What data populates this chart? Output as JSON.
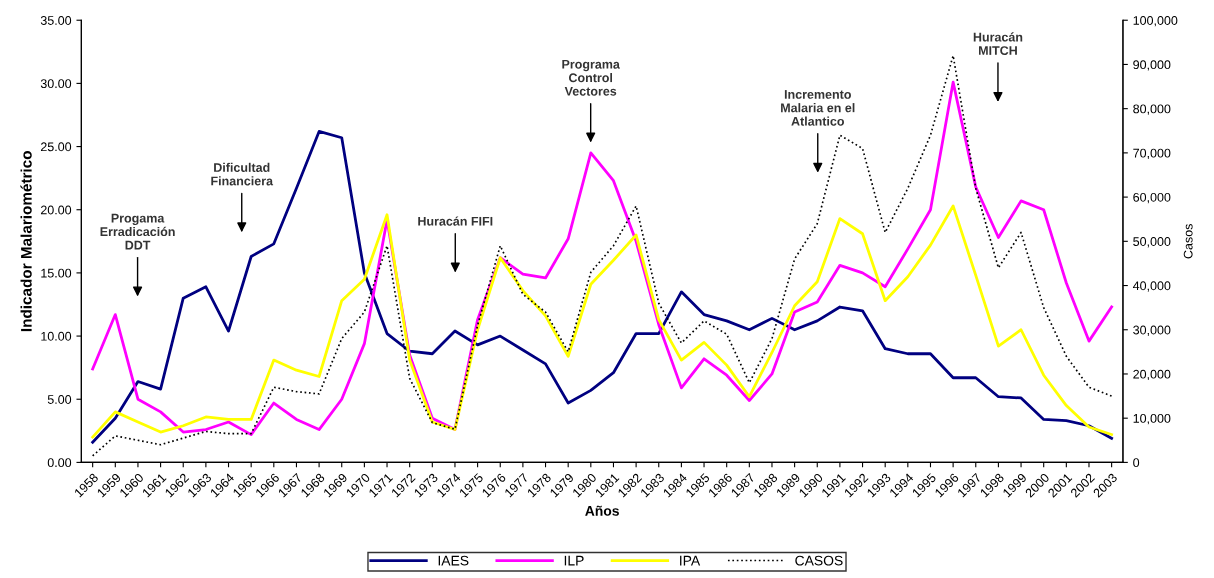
{
  "chart_data": {
    "type": "line",
    "xlabel": "Años",
    "ylabel": "Indicador Malariométrico",
    "y2label": "Casos",
    "categories": [
      "1958",
      "1959",
      "1960",
      "1961",
      "1962",
      "1963",
      "1964",
      "1965",
      "1966",
      "1967",
      "1968",
      "1969",
      "1970",
      "1971",
      "1972",
      "1973",
      "1974",
      "1975",
      "1976",
      "1977",
      "1978",
      "1979",
      "1980",
      "1981",
      "1982",
      "1983",
      "1984",
      "1985",
      "1986",
      "1987",
      "1988",
      "1989",
      "1990",
      "1991",
      "1992",
      "1993",
      "1994",
      "1995",
      "1996",
      "1997",
      "1998",
      "1999",
      "2000",
      "2001",
      "2002",
      "2003"
    ],
    "series": [
      {
        "name": "IAES",
        "color": "#000080",
        "line_style": "solid",
        "values": [
          1.6,
          3.5,
          6.4,
          5.8,
          13.0,
          13.9,
          10.4,
          16.3,
          17.3,
          21.7,
          26.2,
          25.7,
          15.0,
          10.2,
          8.8,
          8.6,
          10.4,
          9.3,
          10.0,
          8.9,
          7.8,
          4.7,
          5.7,
          7.1,
          10.2,
          10.2,
          13.5,
          11.7,
          11.2,
          10.5,
          11.4,
          10.5,
          11.2,
          12.3,
          12.0,
          9.0,
          8.6,
          8.6,
          6.7,
          6.7,
          5.2,
          5.1,
          3.4,
          3.3,
          2.9,
          1.9
        ]
      },
      {
        "name": "ILP",
        "color": "#ff00ff",
        "line_style": "solid",
        "values": [
          7.4,
          11.7,
          5.0,
          4.0,
          2.4,
          2.6,
          3.2,
          2.2,
          4.7,
          3.4,
          2.6,
          5.0,
          9.4,
          19.2,
          8.5,
          3.5,
          2.6,
          11.3,
          16.2,
          14.9,
          14.6,
          17.7,
          24.5,
          22.3,
          17.5,
          10.9,
          5.9,
          8.2,
          6.9,
          4.9,
          7.0,
          11.9,
          12.7,
          15.6,
          15.0,
          13.9,
          16.9,
          20.0,
          30.1,
          21.8,
          17.8,
          20.7,
          20.0,
          14.2,
          9.6,
          12.3
        ]
      },
      {
        "name": "IPA",
        "color": "#ffff00",
        "line_style": "solid",
        "values": [
          2.0,
          4.0,
          3.2,
          2.4,
          2.9,
          3.6,
          3.4,
          3.4,
          8.1,
          7.3,
          6.8,
          12.8,
          14.5,
          19.6,
          8.1,
          3.2,
          2.6,
          10.5,
          16.2,
          13.6,
          11.6,
          8.4,
          14.1,
          16.0,
          18.0,
          11.3,
          8.1,
          9.5,
          7.7,
          5.2,
          8.7,
          12.4,
          14.3,
          19.3,
          18.1,
          12.8,
          14.7,
          17.2,
          20.3,
          14.8,
          9.2,
          10.5,
          6.9,
          4.5,
          2.8,
          2.2
        ]
      },
      {
        "name": "CASOS",
        "color": "#000000",
        "line_style": "dotted",
        "axis": "y2",
        "values": [
          1500,
          6000,
          5000,
          4000,
          5500,
          7000,
          6500,
          6500,
          17000,
          16000,
          15500,
          28000,
          34000,
          49000,
          19000,
          9000,
          7500,
          31000,
          49000,
          38000,
          34000,
          25000,
          43000,
          49000,
          58000,
          36000,
          27000,
          32000,
          29000,
          18000,
          28000,
          46000,
          54000,
          74000,
          71000,
          52000,
          62000,
          74000,
          92000,
          62000,
          44000,
          52000,
          35000,
          24000,
          17000,
          15000
        ]
      }
    ],
    "ylim": [
      0,
      35
    ],
    "yticks": [
      {
        "value": 0,
        "label": "0.00"
      },
      {
        "value": 5,
        "label": "5.00"
      },
      {
        "value": 10,
        "label": "10.00"
      },
      {
        "value": 15,
        "label": "15.00"
      },
      {
        "value": 20,
        "label": "20.00"
      },
      {
        "value": 25,
        "label": "25.00"
      },
      {
        "value": 30,
        "label": "30.00"
      },
      {
        "value": 35,
        "label": "35.00"
      }
    ],
    "y2lim": [
      0,
      100000
    ],
    "y2ticks": [
      0,
      {
        "value": 10000,
        "label": "10,000"
      },
      {
        "value": 20000,
        "label": "20,000"
      },
      {
        "value": 30000,
        "label": "30,000"
      },
      {
        "value": 40000,
        "label": "40,000"
      },
      {
        "value": 50000,
        "label": "50,000"
      },
      {
        "value": 60000,
        "label": "60,000"
      },
      {
        "value": 70000,
        "label": "70,000"
      },
      {
        "value": 80000,
        "label": "80,000"
      },
      {
        "value": 90000,
        "label": "90,000"
      },
      {
        "value": 100000,
        "label": "100,000"
      }
    ],
    "annotations": [
      "Progama\nErradicación\nDDT",
      "Dificultad\nFinanciera",
      "Huracán FIFI",
      "Programa\nControl\nVectores",
      "Incremento\nMalaria en el\nAtlantico",
      "Huracán\nMITCH"
    ],
    "grid": false,
    "legend": "bottom",
    "marker": "none"
  }
}
